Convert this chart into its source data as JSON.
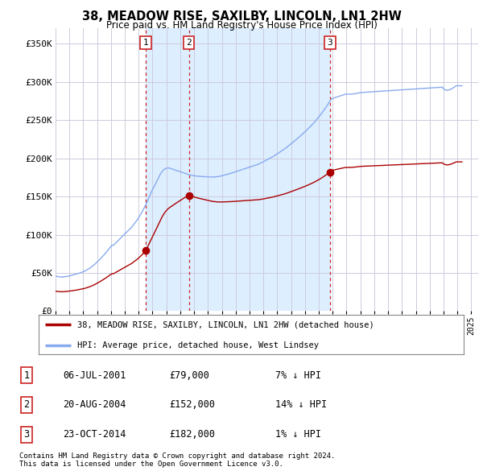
{
  "title": "38, MEADOW RISE, SAXILBY, LINCOLN, LN1 2HW",
  "subtitle": "Price paid vs. HM Land Registry's House Price Index (HPI)",
  "ylabel_ticks": [
    "£0",
    "£50K",
    "£100K",
    "£150K",
    "£200K",
    "£250K",
    "£300K",
    "£350K"
  ],
  "ytick_values": [
    0,
    50000,
    100000,
    150000,
    200000,
    250000,
    300000,
    350000
  ],
  "ylim": [
    0,
    370000
  ],
  "xlim_start": 1995.0,
  "xlim_end": 2025.5,
  "legend_property": "38, MEADOW RISE, SAXILBY, LINCOLN, LN1 2HW (detached house)",
  "legend_hpi": "HPI: Average price, detached house, West Lindsey",
  "sale_markers": [
    {
      "label": "1",
      "date": "06-JUL-2001",
      "price": "£79,000",
      "hpi_rel": "7% ↓ HPI",
      "x_year": 2001.5
    },
    {
      "label": "2",
      "date": "20-AUG-2004",
      "price": "£152,000",
      "hpi_rel": "14% ↓ HPI",
      "x_year": 2004.625
    },
    {
      "label": "3",
      "date": "23-OCT-2014",
      "price": "£182,000",
      "hpi_rel": "1% ↓ HPI",
      "x_year": 2014.8
    }
  ],
  "sale_prices": [
    79000,
    152000,
    182000
  ],
  "property_color": "#aa0000",
  "hpi_color": "#88aaee",
  "vline_color": "#cc2222",
  "shade_color": "#ddeeff",
  "footnote1": "Contains HM Land Registry data © Crown copyright and database right 2024.",
  "footnote2": "This data is licensed under the Open Government Licence v3.0.",
  "hpi_monthly": {
    "start_year": 1995,
    "start_month": 1,
    "values": [
      46000,
      45500,
      45200,
      45000,
      44800,
      44600,
      44700,
      44800,
      45000,
      45200,
      45500,
      45800,
      46200,
      46500,
      46900,
      47200,
      47600,
      48000,
      48500,
      49000,
      49500,
      50000,
      50500,
      51000,
      51500,
      52200,
      53000,
      53800,
      54700,
      55600,
      56600,
      57700,
      58900,
      60100,
      61400,
      62800,
      64200,
      65700,
      67200,
      68800,
      70400,
      72000,
      73700,
      75400,
      77200,
      79100,
      81000,
      83000,
      84800,
      86500,
      86000,
      87500,
      89000,
      90500,
      92000,
      93500,
      95000,
      96500,
      98000,
      99500,
      101000,
      102500,
      104000,
      105500,
      107000,
      108500,
      110000,
      112000,
      114000,
      116000,
      118000,
      120000,
      122500,
      125000,
      127500,
      130000,
      133000,
      136000,
      139000,
      142000,
      145500,
      149000,
      152500,
      156000,
      159000,
      162000,
      165000,
      168000,
      171000,
      174000,
      177000,
      180000,
      182000,
      184000,
      185500,
      186500,
      187000,
      187500,
      187500,
      187000,
      186500,
      186000,
      185500,
      185000,
      184500,
      184000,
      183500,
      183000,
      182500,
      182000,
      181500,
      181000,
      180500,
      180000,
      179500,
      179000,
      178500,
      178000,
      177800,
      177500,
      177200,
      177000,
      176800,
      176600,
      176500,
      176400,
      176300,
      176200,
      176100,
      176000,
      175900,
      175800,
      175700,
      175600,
      175500,
      175500,
      175500,
      175600,
      175700,
      175800,
      176000,
      176200,
      176500,
      176800,
      177200,
      177600,
      178000,
      178400,
      178800,
      179200,
      179600,
      180000,
      180500,
      181000,
      181500,
      182000,
      182500,
      183000,
      183500,
      184000,
      184500,
      185000,
      185500,
      186000,
      186500,
      187000,
      187500,
      188000,
      188500,
      189000,
      189500,
      190000,
      190500,
      191000,
      191500,
      192000,
      192700,
      193400,
      194100,
      194800,
      195600,
      196400,
      197200,
      198000,
      198800,
      199600,
      200400,
      201200,
      202100,
      203000,
      204000,
      205000,
      206000,
      207000,
      208000,
      209000,
      210000,
      211000,
      212000,
      213000,
      214200,
      215400,
      216600,
      217800,
      219000,
      220200,
      221500,
      222800,
      224100,
      225400,
      226700,
      228000,
      229300,
      230600,
      232000,
      233400,
      234800,
      236200,
      237700,
      239200,
      240700,
      242200,
      243800,
      245400,
      247100,
      248800,
      250600,
      252400,
      254200,
      256100,
      258100,
      260100,
      262200,
      264300,
      266500,
      268800,
      271100,
      273400,
      275700,
      278000,
      278500,
      279000,
      279500,
      280000,
      280500,
      281000,
      281500,
      282000,
      282500,
      283000,
      283500,
      284000,
      284000,
      284000,
      284000,
      284000,
      284100,
      284200,
      284400,
      284600,
      284900,
      285200,
      285500,
      285800,
      286000,
      286200,
      286300,
      286400,
      286500,
      286600,
      286700,
      286800,
      286900,
      287000,
      287100,
      287200,
      287300,
      287400,
      287500,
      287600,
      287700,
      287800,
      287900,
      288000,
      288100,
      288200,
      288300,
      288400,
      288500,
      288600,
      288700,
      288800,
      288900,
      289000,
      289100,
      289200,
      289300,
      289400,
      289500,
      289600,
      289700,
      289800,
      289900,
      290000,
      290100,
      290200,
      290300,
      290400,
      290500,
      290600,
      290700,
      290800,
      290900,
      291000,
      291100,
      291200,
      291300,
      291400,
      291500,
      291600,
      291700,
      291800,
      291900,
      292000,
      292100,
      292200,
      292300,
      292400,
      292500,
      292600,
      292700,
      292800,
      292900,
      293000,
      293100,
      293200,
      291000,
      290000,
      289500,
      289000,
      289200,
      289700,
      290300,
      291000,
      292000,
      293000,
      294000,
      295000,
      295000,
      295000,
      295000,
      295000,
      295000
    ]
  },
  "background_color": "#ffffff",
  "grid_color": "#ccccdd"
}
